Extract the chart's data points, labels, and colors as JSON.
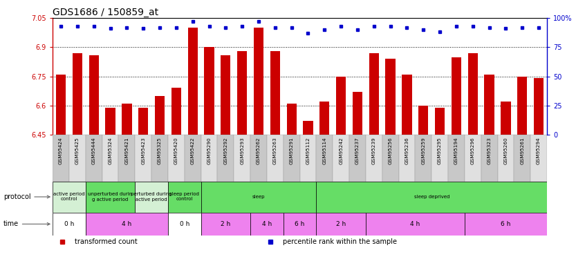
{
  "title": "GDS1686 / 150859_at",
  "samples": [
    "GSM95424",
    "GSM95425",
    "GSM95444",
    "GSM95324",
    "GSM95421",
    "GSM95423",
    "GSM95325",
    "GSM95420",
    "GSM95422",
    "GSM95290",
    "GSM95292",
    "GSM95293",
    "GSM95262",
    "GSM95263",
    "GSM95291",
    "GSM95112",
    "GSM95114",
    "GSM95242",
    "GSM95237",
    "GSM95239",
    "GSM95256",
    "GSM95236",
    "GSM95259",
    "GSM95295",
    "GSM95194",
    "GSM95296",
    "GSM95323",
    "GSM95260",
    "GSM95261",
    "GSM95294"
  ],
  "bar_values": [
    6.76,
    6.87,
    6.86,
    6.59,
    6.61,
    6.59,
    6.65,
    6.69,
    7.0,
    6.9,
    6.86,
    6.88,
    7.0,
    6.88,
    6.61,
    6.52,
    6.62,
    6.75,
    6.67,
    6.87,
    6.84,
    6.76,
    6.6,
    6.59,
    6.85,
    6.87,
    6.76,
    6.62,
    6.75,
    6.74
  ],
  "percentile_values": [
    93,
    93,
    93,
    91,
    92,
    91,
    92,
    92,
    97,
    93,
    92,
    93,
    97,
    92,
    92,
    87,
    90,
    93,
    90,
    93,
    93,
    92,
    90,
    88,
    93,
    93,
    92,
    91,
    92,
    92
  ],
  "ylim_left": [
    6.45,
    7.05
  ],
  "ylim_right": [
    0,
    100
  ],
  "yticks_left": [
    6.45,
    6.6,
    6.75,
    6.9,
    7.05
  ],
  "yticks_right": [
    0,
    25,
    50,
    75,
    100
  ],
  "bar_color": "#cc0000",
  "dot_color": "#0000cc",
  "protocol_sections": [
    {
      "label": "active period\ncontrol",
      "start": 0,
      "end": 2,
      "color": "#d4f0d4"
    },
    {
      "label": "unperturbed durin\ng active period",
      "start": 2,
      "end": 5,
      "color": "#66dd66"
    },
    {
      "label": "perturbed during\nactive period",
      "start": 5,
      "end": 7,
      "color": "#d4f0d4"
    },
    {
      "label": "sleep period\ncontrol",
      "start": 7,
      "end": 9,
      "color": "#66dd66"
    },
    {
      "label": "sleep",
      "start": 9,
      "end": 16,
      "color": "#66dd66"
    },
    {
      "label": "sleep deprived",
      "start": 16,
      "end": 30,
      "color": "#66dd66"
    }
  ],
  "time_sections": [
    {
      "label": "0 h",
      "start": 0,
      "end": 2,
      "color": "#ffffff"
    },
    {
      "label": "4 h",
      "start": 2,
      "end": 7,
      "color": "#ee82ee"
    },
    {
      "label": "0 h",
      "start": 7,
      "end": 9,
      "color": "#ffffff"
    },
    {
      "label": "2 h",
      "start": 9,
      "end": 12,
      "color": "#ee82ee"
    },
    {
      "label": "4 h",
      "start": 12,
      "end": 14,
      "color": "#ee82ee"
    },
    {
      "label": "6 h",
      "start": 14,
      "end": 16,
      "color": "#ee82ee"
    },
    {
      "label": "2 h",
      "start": 16,
      "end": 19,
      "color": "#ee82ee"
    },
    {
      "label": "4 h",
      "start": 19,
      "end": 25,
      "color": "#ee82ee"
    },
    {
      "label": "6 h",
      "start": 25,
      "end": 30,
      "color": "#ee82ee"
    }
  ],
  "background_color": "#ffffff",
  "title_fontsize": 10,
  "axis_color_left": "#cc0000",
  "axis_color_right": "#0000cc"
}
